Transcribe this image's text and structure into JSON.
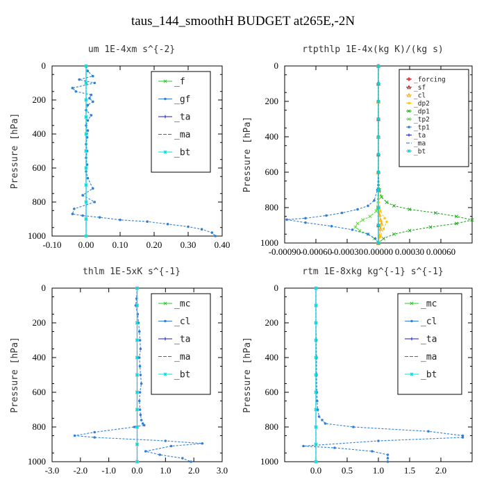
{
  "title": "taus_144_smoothH  BUDGET at265E,-2N",
  "colors": {
    "f": "#22cc22",
    "gf": "#2f7fd8",
    "ta": "#1a1acc",
    "ma": "#1a6ad8",
    "bt": "#00dddd",
    "mc": "#22cc22",
    "cl": "#2f7fd8",
    "forcing": "#dd1111",
    "sf": "#dd1111",
    "cl_rt": "#ffaa00",
    "dp2": "#ffcc00",
    "dp1": "#22aa22",
    "tp2": "#55dd33",
    "tp1": "#2f7fd8"
  },
  "chart_data": [
    {
      "type": "line",
      "title": "um  1E-4xm s^{-2}",
      "ylabel": "Pressure [hPa]",
      "xlim": [
        -0.1,
        0.4
      ],
      "ylim": [
        1000,
        0
      ],
      "xticks": [
        "-0.10",
        "0.00",
        "0.10",
        "0.20",
        "0.30",
        "0.40"
      ],
      "xtick_values": [
        -0.1,
        0.0,
        0.1,
        0.2,
        0.3,
        0.4
      ],
      "yticks": [
        "0",
        "200",
        "400",
        "600",
        "800",
        "1000"
      ],
      "legend_position": "top-right",
      "series": [
        {
          "name": "_f",
          "color_key": "f",
          "marker": "x",
          "x": [
            0,
            0,
            0,
            0,
            0,
            0,
            0,
            0,
            0,
            0,
            0
          ],
          "y": [
            0,
            100,
            200,
            300,
            400,
            500,
            600,
            700,
            800,
            900,
            1000
          ]
        },
        {
          "name": "_gf",
          "color_key": "gf",
          "marker": "dot",
          "x": [
            0,
            0.005,
            0.02,
            -0.02,
            0.025,
            -0.04,
            -0.03,
            0.015,
            0.01,
            0.02,
            0.005,
            0.0,
            0.015,
            0.005,
            0.0,
            0.005,
            0.003,
            0.0,
            0.003,
            0.0,
            0.003,
            0.0,
            0.005,
            0.02,
            -0.01,
            0.025,
            -0.035,
            -0.04,
            -0.01,
            0.04,
            0.1,
            0.18,
            0.24,
            0.3,
            0.34,
            0.37,
            0.38
          ],
          "y": [
            0,
            30,
            60,
            80,
            100,
            130,
            150,
            170,
            190,
            210,
            230,
            260,
            290,
            320,
            350,
            380,
            420,
            460,
            500,
            540,
            580,
            620,
            660,
            720,
            760,
            800,
            840,
            870,
            880,
            890,
            905,
            915,
            930,
            945,
            960,
            980,
            1000
          ]
        },
        {
          "name": "_ta",
          "color_key": "ta",
          "marker": "plus",
          "x": [
            0,
            0,
            0,
            0,
            0,
            0,
            0,
            0,
            0,
            0,
            0
          ],
          "y": [
            0,
            100,
            200,
            300,
            400,
            500,
            600,
            700,
            800,
            900,
            1000
          ]
        },
        {
          "name": "_ma",
          "color_key": "ma",
          "marker": "none",
          "x": [
            0,
            0,
            0,
            0,
            0,
            0
          ],
          "y": [
            0,
            200,
            400,
            600,
            800,
            1000
          ]
        },
        {
          "name": "_bt",
          "color_key": "bt",
          "marker": "star",
          "x": [
            0,
            0,
            0,
            0,
            0,
            0,
            0,
            0,
            0,
            0,
            0
          ],
          "y": [
            0,
            100,
            200,
            300,
            400,
            500,
            600,
            700,
            800,
            900,
            1000
          ]
        }
      ]
    },
    {
      "type": "line",
      "title": "rtpthlp  1E-4x(kg K)/(kg s)",
      "ylabel": "Pressure [hPa]",
      "xlim": [
        -0.0009,
        0.0009
      ],
      "ylim": [
        1000,
        0
      ],
      "xticks": [
        "-0.00090",
        "-0.00060",
        "-0.00030",
        "0.00000",
        "0.00030",
        "0.00060"
      ],
      "xtick_values": [
        -0.0009,
        -0.0006,
        -0.0003,
        0.0,
        0.0003,
        0.0006
      ],
      "yticks": [
        "0",
        "200",
        "400",
        "600",
        "800",
        "1000"
      ],
      "legend_position": "top-right",
      "series": [
        {
          "name": "_forcing",
          "color_key": "forcing",
          "marker": "diamond",
          "x": [
            0,
            0,
            0,
            0,
            0,
            0,
            0,
            0,
            0,
            0,
            0
          ],
          "y": [
            0,
            100,
            200,
            300,
            400,
            500,
            600,
            700,
            800,
            900,
            1000
          ]
        },
        {
          "name": "_sf",
          "color_key": "sf",
          "marker": "tri",
          "x": [
            0,
            0,
            0,
            0,
            0,
            0,
            0,
            0,
            0,
            0,
            0
          ],
          "y": [
            0,
            100,
            200,
            300,
            400,
            500,
            600,
            700,
            800,
            900,
            1000
          ]
        },
        {
          "name": "_cl",
          "color_key": "cl_rt",
          "marker": "tri",
          "x": [
            0,
            0,
            0,
            0,
            0,
            1e-05,
            2e-05,
            3e-05,
            2e-05,
            1e-05,
            0
          ],
          "y": [
            0,
            200,
            400,
            600,
            800,
            840,
            870,
            890,
            920,
            960,
            1000
          ]
        },
        {
          "name": "_dp2",
          "color_key": "dp2",
          "marker": "dot",
          "x": [
            0,
            0,
            0,
            2e-05,
            6e-05,
            8e-05,
            5e-05,
            2e-05,
            0
          ],
          "y": [
            0,
            400,
            700,
            820,
            860,
            880,
            920,
            960,
            1000
          ]
        },
        {
          "name": "_dp1",
          "color_key": "dp1",
          "marker": "x",
          "x": [
            0,
            0,
            0,
            1e-05,
            3e-05,
            8e-05,
            0.00015,
            0.0003,
            0.00055,
            0.00075,
            0.0009,
            0.00075,
            0.0005,
            0.0003,
            0.00015,
            5e-05,
            0
          ],
          "y": [
            0,
            300,
            600,
            700,
            740,
            770,
            790,
            810,
            830,
            850,
            870,
            890,
            910,
            930,
            950,
            975,
            1000
          ]
        },
        {
          "name": "_tp2",
          "color_key": "tp2",
          "marker": "x",
          "x": [
            0,
            0,
            -2e-05,
            -8e-05,
            -0.00015,
            -0.0002,
            -0.00022,
            -0.00018,
            -0.0001,
            -4e-05,
            0
          ],
          "y": [
            0,
            700,
            820,
            850,
            870,
            890,
            910,
            930,
            950,
            975,
            1000
          ]
        },
        {
          "name": "_tp1",
          "color_key": "tp1",
          "marker": "dot",
          "x": [
            0,
            0,
            -1e-05,
            -4e-05,
            -0.0001,
            -0.0002,
            -0.00035,
            -0.0005,
            -0.0007,
            -0.00088,
            -0.0007,
            -0.00045,
            -0.00025,
            -0.0001,
            -3e-05,
            0
          ],
          "y": [
            0,
            600,
            700,
            760,
            790,
            810,
            830,
            845,
            860,
            868,
            885,
            905,
            925,
            950,
            975,
            1000
          ]
        },
        {
          "name": "_ta",
          "color_key": "ta",
          "marker": "plus",
          "x": [
            0,
            0,
            0,
            0,
            0,
            0,
            0,
            0,
            0,
            0,
            0
          ],
          "y": [
            0,
            100,
            200,
            300,
            400,
            500,
            600,
            700,
            800,
            900,
            1000
          ]
        },
        {
          "name": "_ma",
          "color_key": "ma",
          "marker": "none",
          "x": [
            0,
            0,
            0,
            0,
            0,
            0
          ],
          "y": [
            0,
            200,
            400,
            600,
            800,
            1000
          ]
        },
        {
          "name": "_bt",
          "color_key": "bt",
          "marker": "star",
          "x": [
            0,
            0,
            0,
            0,
            0,
            0,
            0,
            0,
            0,
            0,
            0
          ],
          "y": [
            0,
            100,
            200,
            300,
            400,
            500,
            600,
            700,
            800,
            900,
            1000
          ]
        }
      ]
    },
    {
      "type": "line",
      "title": "thlm  1E-5xK s^{-1}",
      "ylabel": "Pressure [hPa]",
      "xlim": [
        -3.0,
        3.0
      ],
      "ylim": [
        1000,
        0
      ],
      "xticks": [
        "-3.0",
        "-2.0",
        "-1.0",
        "0.0",
        "1.0",
        "2.0",
        "3.0"
      ],
      "xtick_values": [
        -3,
        -2,
        -1,
        0,
        1,
        2,
        3
      ],
      "yticks": [
        "0",
        "200",
        "400",
        "600",
        "800",
        "1000"
      ],
      "legend_position": "top-right",
      "series": [
        {
          "name": "_mc",
          "color_key": "mc",
          "marker": "x",
          "x": [
            0,
            0,
            0,
            0,
            0,
            0,
            0,
            0,
            0,
            0,
            0
          ],
          "y": [
            0,
            100,
            200,
            300,
            400,
            500,
            600,
            700,
            800,
            900,
            1000
          ]
        },
        {
          "name": "_cl",
          "color_key": "cl",
          "marker": "dot",
          "x": [
            0,
            -0.02,
            -0.05,
            0.02,
            0.05,
            0.08,
            0.1,
            0.12,
            0.08,
            0.1,
            0.12,
            0.15,
            0.1,
            0.08,
            0.1,
            0.12,
            0.15,
            0.2,
            0.25,
            -0.1,
            -1.5,
            -2.2,
            -1.5,
            1.0,
            2.3,
            1.2,
            0.3,
            0.8,
            1.6,
            1.9
          ],
          "y": [
            0,
            60,
            100,
            150,
            200,
            250,
            300,
            350,
            400,
            450,
            500,
            550,
            600,
            650,
            700,
            730,
            760,
            780,
            790,
            800,
            830,
            850,
            860,
            880,
            895,
            910,
            940,
            960,
            980,
            1000
          ]
        },
        {
          "name": "_ta",
          "color_key": "ta",
          "marker": "plus",
          "x": [
            0,
            0,
            0,
            0,
            0,
            0,
            0,
            0,
            0,
            0,
            0
          ],
          "y": [
            0,
            100,
            200,
            300,
            400,
            500,
            600,
            700,
            800,
            900,
            1000
          ]
        },
        {
          "name": "_ma",
          "color_key": "ma",
          "marker": "none",
          "x": [
            0,
            0,
            0,
            0,
            0,
            0
          ],
          "y": [
            0,
            200,
            400,
            600,
            800,
            1000
          ]
        },
        {
          "name": "_bt",
          "color_key": "bt",
          "marker": "star",
          "x": [
            0,
            0,
            0,
            0,
            0,
            0,
            0,
            0,
            0,
            0,
            0
          ],
          "y": [
            0,
            100,
            200,
            300,
            400,
            500,
            600,
            700,
            800,
            900,
            1000
          ]
        }
      ]
    },
    {
      "type": "line",
      "title": "rtm  1E-8xkg kg^{-1} s^{-1}",
      "ylabel": "Pressure [hPa]",
      "xlim": [
        -0.5,
        2.5
      ],
      "ylim": [
        1000,
        0
      ],
      "xticks": [
        "0.0",
        "0.5",
        "1.0",
        "1.5",
        "2.0"
      ],
      "xtick_values": [
        0.0,
        0.5,
        1.0,
        1.5,
        2.0
      ],
      "yticks": [
        "0",
        "200",
        "400",
        "600",
        "800",
        "1000"
      ],
      "legend_position": "top-right",
      "series": [
        {
          "name": "_mc",
          "color_key": "mc",
          "marker": "x",
          "x": [
            0,
            0,
            0,
            0,
            0,
            0,
            0,
            0,
            0,
            0,
            0
          ],
          "y": [
            0,
            100,
            200,
            300,
            400,
            500,
            600,
            700,
            800,
            900,
            1000
          ]
        },
        {
          "name": "_cl",
          "color_key": "cl",
          "marker": "dot",
          "x": [
            0,
            0,
            0.005,
            0.01,
            0.01,
            0.015,
            0.02,
            0.03,
            0.05,
            0.1,
            0.15,
            0.6,
            1.8,
            2.35,
            2.35,
            1.0,
            -0.2,
            0.3,
            0.9,
            1.15,
            1.15,
            1.15
          ],
          "y": [
            0,
            200,
            300,
            400,
            500,
            600,
            650,
            700,
            740,
            760,
            780,
            800,
            825,
            850,
            860,
            880,
            910,
            920,
            940,
            960,
            980,
            1000
          ]
        },
        {
          "name": "_ta",
          "color_key": "ta",
          "marker": "plus",
          "x": [
            0,
            0,
            0,
            0,
            0,
            0,
            0,
            0,
            0,
            0,
            0
          ],
          "y": [
            0,
            100,
            200,
            300,
            400,
            500,
            600,
            700,
            800,
            900,
            1000
          ]
        },
        {
          "name": "_ma",
          "color_key": "ma",
          "marker": "none",
          "x": [
            0,
            0,
            0,
            0,
            0,
            0
          ],
          "y": [
            0,
            200,
            400,
            600,
            800,
            1000
          ]
        },
        {
          "name": "_bt",
          "color_key": "bt",
          "marker": "star",
          "x": [
            0,
            0,
            0,
            0,
            0,
            0,
            0,
            0,
            0,
            0,
            0
          ],
          "y": [
            0,
            100,
            200,
            300,
            400,
            500,
            600,
            700,
            800,
            900,
            1000
          ]
        }
      ]
    }
  ]
}
